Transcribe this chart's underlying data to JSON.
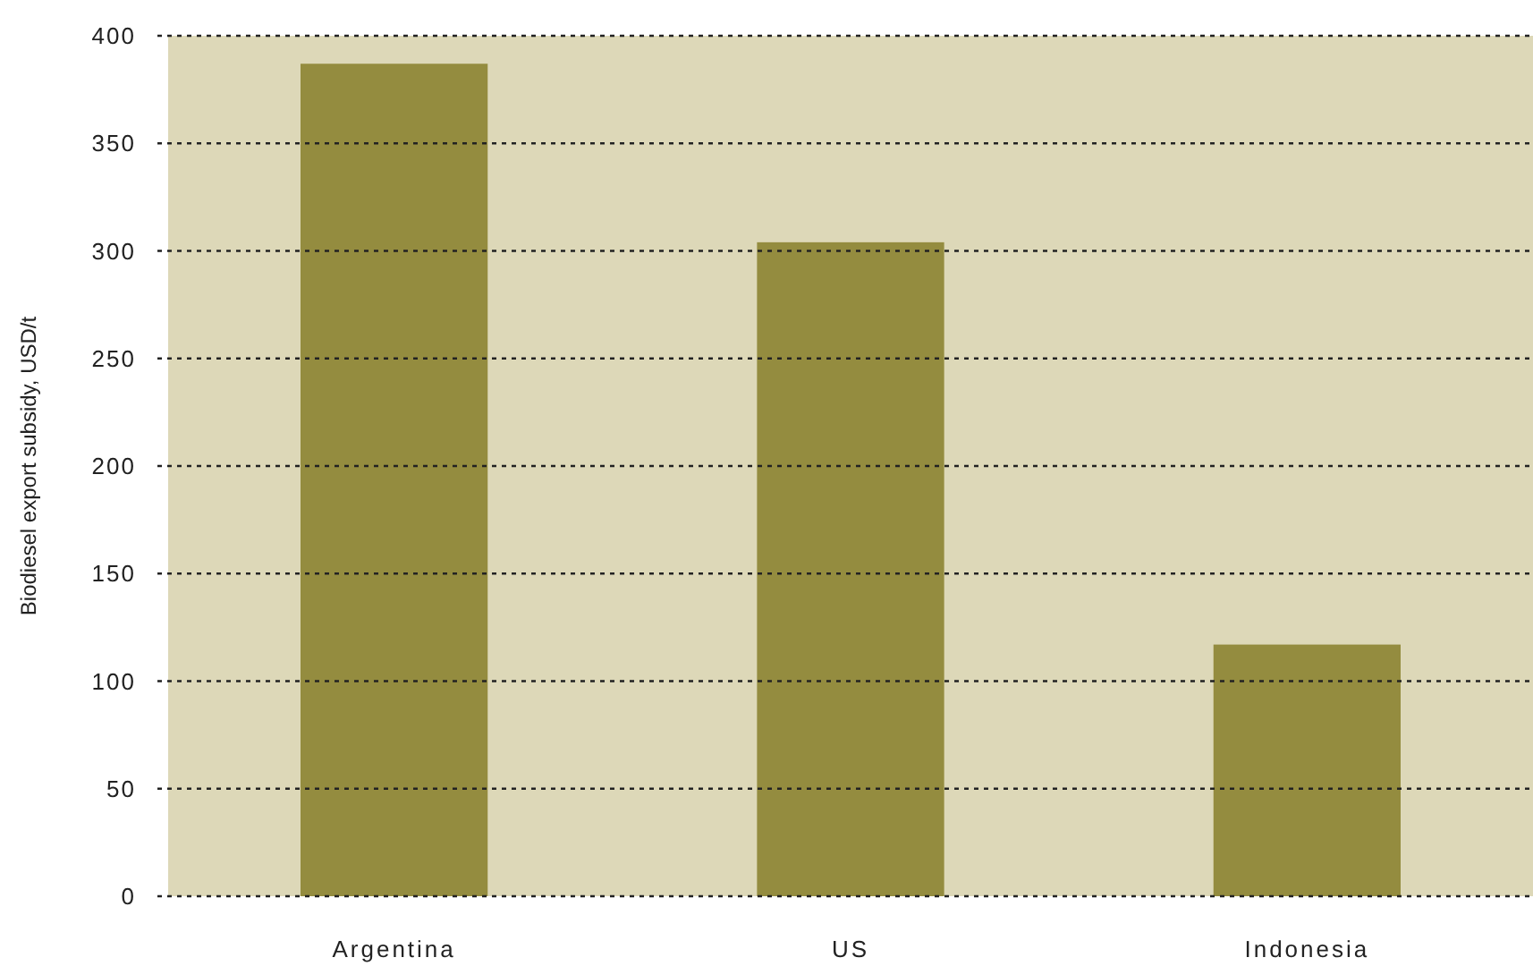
{
  "chart_data": {
    "type": "bar",
    "ylabel": "Biodiesel export subsidy, USD/t",
    "categories": [
      "Argentina",
      "US",
      "Indonesia"
    ],
    "values": [
      387,
      304,
      117
    ],
    "color": "#948c3f",
    "ylim": [
      0,
      400
    ],
    "yticks": [
      0,
      50,
      100,
      150,
      200,
      250,
      300,
      350,
      400
    ],
    "grid": "y"
  }
}
